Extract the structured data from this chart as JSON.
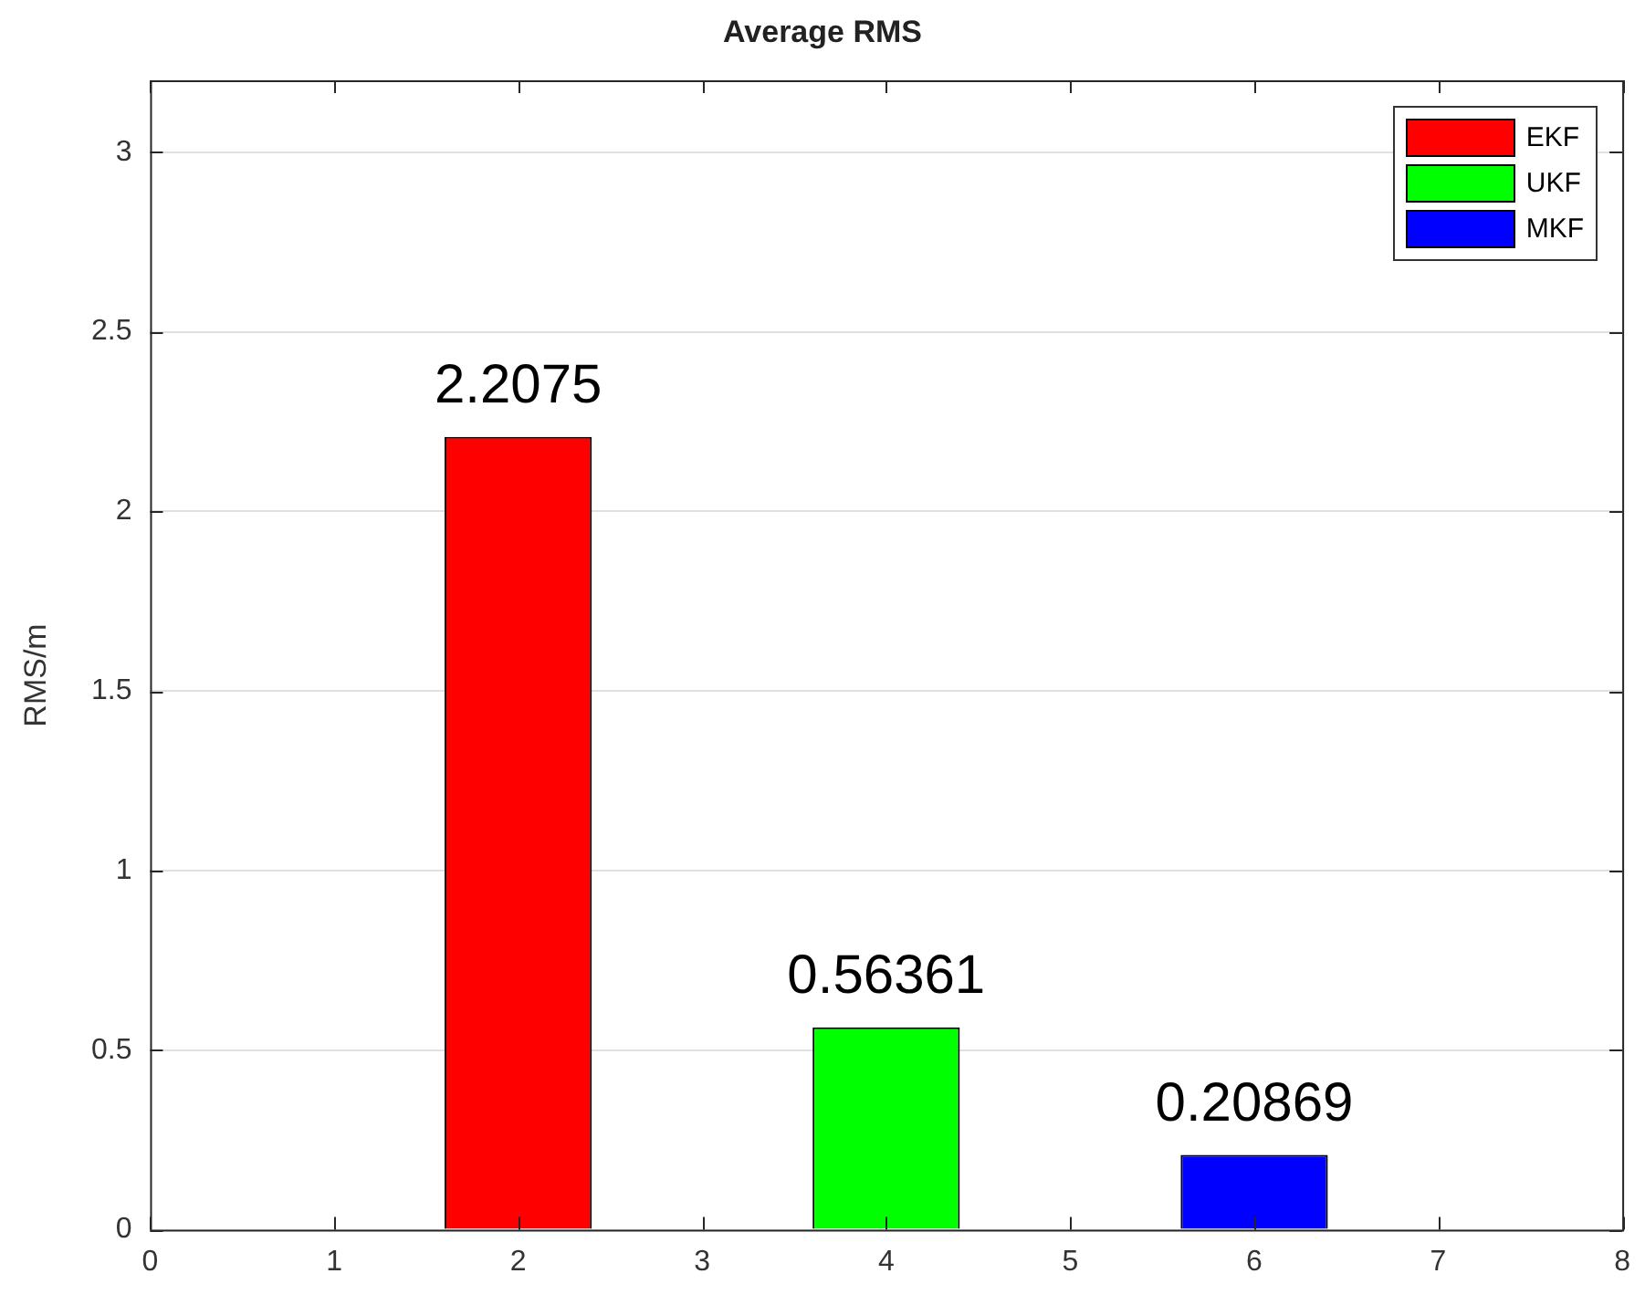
{
  "chart_data": {
    "type": "bar",
    "title": "Average RMS",
    "ylabel": "RMS/m",
    "x": [
      2,
      4,
      6
    ],
    "series": [
      {
        "name": "EKF",
        "color": "#ff0000",
        "values": [
          2.2075,
          null,
          null
        ]
      },
      {
        "name": "UKF",
        "color": "#00ff00",
        "values": [
          null,
          0.56361,
          null
        ]
      },
      {
        "name": "MKF",
        "color": "#0000ff",
        "values": [
          null,
          null,
          0.20869
        ]
      }
    ],
    "xlim": [
      0,
      8
    ],
    "xticks": [
      0,
      1,
      2,
      3,
      4,
      5,
      6,
      7,
      8
    ],
    "ylim": [
      0,
      3.2
    ],
    "yticks": [
      0,
      0.5,
      1,
      1.5,
      2,
      2.5,
      3
    ],
    "grid": "y",
    "legend": "top right",
    "data_labels": true
  }
}
